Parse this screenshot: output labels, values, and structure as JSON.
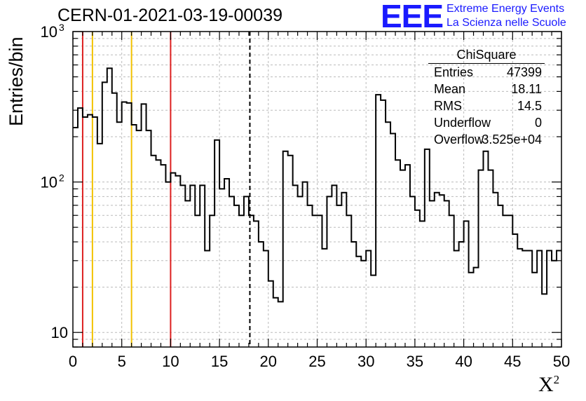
{
  "header": {
    "title": "CERN-01-2021-03-19-00039",
    "logo_text": "EEE",
    "logo_line1": "Extreme Energy Events",
    "logo_line2": "La Scienza nelle Scuole"
  },
  "stats_box": {
    "title": "ChiSquare",
    "rows": [
      {
        "key": "Entries",
        "value": "47399"
      },
      {
        "key": "Mean",
        "value": "18.11"
      },
      {
        "key": "RMS",
        "value": "14.5"
      },
      {
        "key": "Underflow",
        "value": "0"
      },
      {
        "key": "Overflow",
        "value": "3.525e+04"
      }
    ]
  },
  "chart_data": {
    "type": "bar",
    "histogram": "step",
    "ylabel": "Entries/bin",
    "xlabel": "X",
    "xlabel_superscript": "2",
    "xlim": [
      0,
      50
    ],
    "ylim": [
      8,
      1000
    ],
    "y_scale": "log",
    "grid": true,
    "x_ticks": [
      0,
      5,
      10,
      15,
      20,
      25,
      30,
      35,
      40,
      45,
      50
    ],
    "y_tick_labels": [
      {
        "value": 10,
        "label": "10"
      },
      {
        "value": 100,
        "label": "10"
      },
      {
        "value": 1000,
        "label": "10"
      }
    ],
    "y_tick_exponents": [
      "",
      "2",
      "3"
    ],
    "bin_width": 0.5,
    "values": [
      230,
      310,
      270,
      280,
      270,
      180,
      460,
      570,
      390,
      250,
      340,
      335,
      240,
      220,
      330,
      220,
      150,
      140,
      130,
      100,
      115,
      110,
      95,
      75,
      95,
      60,
      95,
      35,
      60,
      190,
      90,
      105,
      80,
      70,
      60,
      80,
      60,
      55,
      40,
      35,
      22,
      17,
      16,
      160,
      150,
      95,
      80,
      100,
      70,
      60,
      60,
      36,
      80,
      95,
      70,
      85,
      60,
      40,
      32,
      30,
      35,
      24,
      380,
      350,
      250,
      210,
      140,
      120,
      130,
      80,
      65,
      55,
      165,
      75,
      85,
      82,
      75,
      60,
      35,
      40,
      55,
      25,
      27,
      120,
      160,
      120,
      85,
      70,
      60,
      60,
      45,
      36,
      35,
      35,
      25,
      35,
      18,
      35,
      30,
      35
    ],
    "vertical_lines": [
      {
        "x": 1,
        "color": "#dd1f1f",
        "style": "solid"
      },
      {
        "x": 2,
        "color": "#f2c200",
        "style": "solid"
      },
      {
        "x": 6,
        "color": "#f2c200",
        "style": "solid"
      },
      {
        "x": 10,
        "color": "#dd1f1f",
        "style": "solid"
      },
      {
        "x": 18.11,
        "color": "#000000",
        "style": "dashed"
      }
    ]
  }
}
